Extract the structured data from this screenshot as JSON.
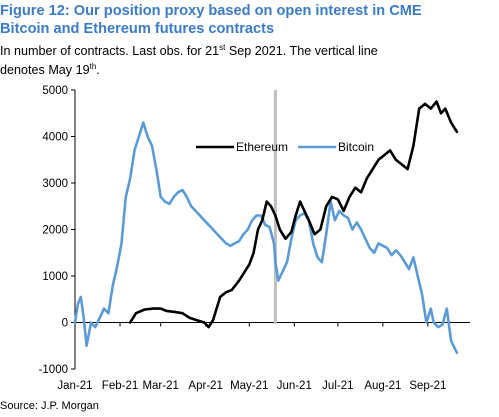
{
  "title_line1": "Figure 12: Our position proxy based on open interest in CME",
  "title_line2": "Bitcoin and Ethereum futures contracts",
  "subtitle_part1": "In number of contracts. Last obs. for 21",
  "subtitle_sup1": "st",
  "subtitle_part2": " Sep 2021. The vertical line",
  "subtitle_part3": "denotes May 19",
  "subtitle_sup2": "th",
  "subtitle_part4": ".",
  "source": "Source: J.P. Morgan",
  "colors": {
    "ethereum": "#000000",
    "bitcoin": "#5b9bd5",
    "vline": "#bfbfbf",
    "title": "#3b7bc8"
  },
  "chart_data": {
    "type": "line",
    "x_axis_type": "date",
    "xlim": [
      "2021-01-01",
      "2021-09-30"
    ],
    "ylim": [
      -1000,
      5000
    ],
    "y_ticks": [
      -1000,
      0,
      1000,
      2000,
      3000,
      4000,
      5000
    ],
    "y_tick_labels": [
      "-1000",
      "0",
      "1000",
      "2000",
      "3000",
      "4000",
      "5000"
    ],
    "x_ticks": [
      "2021-01-01",
      "2021-02-01",
      "2021-03-01",
      "2021-04-01",
      "2021-05-01",
      "2021-06-01",
      "2021-07-01",
      "2021-08-01",
      "2021-09-01"
    ],
    "x_tick_labels": [
      "Jan-21",
      "Feb-21",
      "Mar-21",
      "Apr-21",
      "May-21",
      "Jun-21",
      "Jul-21",
      "Aug-21",
      "Sep-21"
    ],
    "vertical_line": "2021-05-19",
    "legend_position": "top-center",
    "series": [
      {
        "name": "Ethereum",
        "points": [
          [
            "2021-02-08",
            0
          ],
          [
            "2021-02-12",
            200
          ],
          [
            "2021-02-18",
            280
          ],
          [
            "2021-02-24",
            300
          ],
          [
            "2021-03-01",
            300
          ],
          [
            "2021-03-05",
            250
          ],
          [
            "2021-03-10",
            230
          ],
          [
            "2021-03-16",
            200
          ],
          [
            "2021-03-21",
            100
          ],
          [
            "2021-03-26",
            50
          ],
          [
            "2021-03-31",
            0
          ],
          [
            "2021-04-03",
            -100
          ],
          [
            "2021-04-06",
            50
          ],
          [
            "2021-04-11",
            550
          ],
          [
            "2021-04-15",
            650
          ],
          [
            "2021-04-19",
            700
          ],
          [
            "2021-04-24",
            900
          ],
          [
            "2021-04-28",
            1100
          ],
          [
            "2021-05-01",
            1250
          ],
          [
            "2021-05-04",
            1500
          ],
          [
            "2021-05-07",
            2000
          ],
          [
            "2021-05-10",
            2200
          ],
          [
            "2021-05-13",
            2600
          ],
          [
            "2021-05-16",
            2500
          ],
          [
            "2021-05-19",
            2300
          ],
          [
            "2021-05-22",
            2000
          ],
          [
            "2021-05-26",
            1800
          ],
          [
            "2021-05-30",
            1950
          ],
          [
            "2021-06-02",
            2300
          ],
          [
            "2021-06-05",
            2600
          ],
          [
            "2021-06-08",
            2400
          ],
          [
            "2021-06-11",
            2200
          ],
          [
            "2021-06-15",
            1900
          ],
          [
            "2021-06-19",
            2000
          ],
          [
            "2021-06-23",
            2500
          ],
          [
            "2021-06-27",
            2700
          ],
          [
            "2021-07-01",
            2650
          ],
          [
            "2021-07-05",
            2400
          ],
          [
            "2021-07-09",
            2700
          ],
          [
            "2021-07-13",
            2900
          ],
          [
            "2021-07-17",
            2800
          ],
          [
            "2021-07-21",
            3100
          ],
          [
            "2021-07-25",
            3300
          ],
          [
            "2021-07-29",
            3500
          ],
          [
            "2021-08-02",
            3600
          ],
          [
            "2021-08-06",
            3700
          ],
          [
            "2021-08-10",
            3500
          ],
          [
            "2021-08-14",
            3400
          ],
          [
            "2021-08-18",
            3300
          ],
          [
            "2021-08-22",
            3800
          ],
          [
            "2021-08-26",
            4600
          ],
          [
            "2021-08-30",
            4700
          ],
          [
            "2021-09-03",
            4600
          ],
          [
            "2021-09-07",
            4750
          ],
          [
            "2021-09-10",
            4500
          ],
          [
            "2021-09-13",
            4600
          ],
          [
            "2021-09-17",
            4300
          ],
          [
            "2021-09-21",
            4100
          ]
        ]
      },
      {
        "name": "Bitcoin",
        "points": [
          [
            "2021-01-01",
            0
          ],
          [
            "2021-01-03",
            400
          ],
          [
            "2021-01-05",
            550
          ],
          [
            "2021-01-07",
            100
          ],
          [
            "2021-01-09",
            -500
          ],
          [
            "2021-01-12",
            0
          ],
          [
            "2021-01-15",
            -100
          ],
          [
            "2021-01-18",
            100
          ],
          [
            "2021-01-21",
            300
          ],
          [
            "2021-01-24",
            200
          ],
          [
            "2021-01-27",
            800
          ],
          [
            "2021-01-30",
            1200
          ],
          [
            "2021-02-02",
            1700
          ],
          [
            "2021-02-05",
            2700
          ],
          [
            "2021-02-08",
            3100
          ],
          [
            "2021-02-11",
            3700
          ],
          [
            "2021-02-14",
            4000
          ],
          [
            "2021-02-17",
            4300
          ],
          [
            "2021-02-20",
            4000
          ],
          [
            "2021-02-23",
            3800
          ],
          [
            "2021-02-26",
            3300
          ],
          [
            "2021-03-01",
            2700
          ],
          [
            "2021-03-04",
            2600
          ],
          [
            "2021-03-07",
            2550
          ],
          [
            "2021-03-10",
            2700
          ],
          [
            "2021-03-13",
            2800
          ],
          [
            "2021-03-16",
            2850
          ],
          [
            "2021-03-19",
            2700
          ],
          [
            "2021-03-22",
            2500
          ],
          [
            "2021-03-25",
            2400
          ],
          [
            "2021-03-28",
            2300
          ],
          [
            "2021-03-31",
            2200
          ],
          [
            "2021-04-03",
            2100
          ],
          [
            "2021-04-06",
            2000
          ],
          [
            "2021-04-09",
            1900
          ],
          [
            "2021-04-12",
            1800
          ],
          [
            "2021-04-15",
            1700
          ],
          [
            "2021-04-18",
            1650
          ],
          [
            "2021-04-21",
            1700
          ],
          [
            "2021-04-24",
            1750
          ],
          [
            "2021-04-27",
            1900
          ],
          [
            "2021-04-30",
            2000
          ],
          [
            "2021-05-03",
            2200
          ],
          [
            "2021-05-06",
            2300
          ],
          [
            "2021-05-09",
            2300
          ],
          [
            "2021-05-12",
            2100
          ],
          [
            "2021-05-15",
            2050
          ],
          [
            "2021-05-18",
            1700
          ],
          [
            "2021-05-19",
            1300
          ],
          [
            "2021-05-21",
            900
          ],
          [
            "2021-05-24",
            1100
          ],
          [
            "2021-05-27",
            1300
          ],
          [
            "2021-05-30",
            1800
          ],
          [
            "2021-06-02",
            2200
          ],
          [
            "2021-06-05",
            2300
          ],
          [
            "2021-06-08",
            2350
          ],
          [
            "2021-06-11",
            2200
          ],
          [
            "2021-06-14",
            1700
          ],
          [
            "2021-06-17",
            1400
          ],
          [
            "2021-06-20",
            1300
          ],
          [
            "2021-06-23",
            1900
          ],
          [
            "2021-06-26",
            2600
          ],
          [
            "2021-06-29",
            2200
          ],
          [
            "2021-07-02",
            2400
          ],
          [
            "2021-07-05",
            2300
          ],
          [
            "2021-07-08",
            2250
          ],
          [
            "2021-07-11",
            2000
          ],
          [
            "2021-07-14",
            2150
          ],
          [
            "2021-07-17",
            2000
          ],
          [
            "2021-07-20",
            1800
          ],
          [
            "2021-07-23",
            1600
          ],
          [
            "2021-07-26",
            1500
          ],
          [
            "2021-07-29",
            1700
          ],
          [
            "2021-08-01",
            1650
          ],
          [
            "2021-08-04",
            1600
          ],
          [
            "2021-08-07",
            1450
          ],
          [
            "2021-08-10",
            1550
          ],
          [
            "2021-08-13",
            1450
          ],
          [
            "2021-08-16",
            1300
          ],
          [
            "2021-08-19",
            1150
          ],
          [
            "2021-08-22",
            1400
          ],
          [
            "2021-08-25",
            1000
          ],
          [
            "2021-08-28",
            600
          ],
          [
            "2021-08-31",
            0
          ],
          [
            "2021-09-03",
            300
          ],
          [
            "2021-09-05",
            0
          ],
          [
            "2021-09-08",
            -100
          ],
          [
            "2021-09-11",
            -50
          ],
          [
            "2021-09-14",
            300
          ],
          [
            "2021-09-17",
            -400
          ],
          [
            "2021-09-21",
            -650
          ]
        ]
      }
    ]
  }
}
